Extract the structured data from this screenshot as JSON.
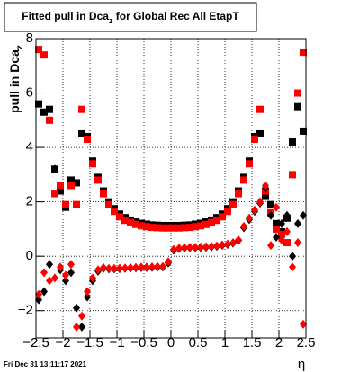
{
  "chart_data": {
    "type": "scatter",
    "title": [
      "Fitted pull in Dca",
      "z",
      " for Global Rec All EtapT"
    ],
    "y_label": [
      "pull in Dca",
      "z"
    ],
    "x_label": "η",
    "footer": "Fri Dec 31 13:11:17 2021",
    "grid": true,
    "xlim": [
      -2.5,
      2.5
    ],
    "ylim": [
      -3,
      8
    ],
    "xticks": [
      {
        "value": -2.5,
        "label": "−2.5"
      },
      {
        "value": -2,
        "label": "−2"
      },
      {
        "value": -1.5,
        "label": "−1.5"
      },
      {
        "value": -1,
        "label": "−1"
      },
      {
        "value": -0.5,
        "label": "−0.5"
      },
      0,
      0.5,
      1,
      1.5,
      2,
      2.5
    ],
    "yticks": [
      {
        "value": -2,
        "label": "−2"
      },
      0,
      2,
      4,
      6,
      8
    ],
    "x": [
      -2.45,
      -2.35,
      -2.25,
      -2.15,
      -2.05,
      -1.95,
      -1.85,
      -1.75,
      -1.65,
      -1.55,
      -1.45,
      -1.35,
      -1.25,
      -1.15,
      -1.05,
      -0.95,
      -0.85,
      -0.75,
      -0.65,
      -0.55,
      -0.45,
      -0.35,
      -0.25,
      -0.15,
      -0.05,
      0.05,
      0.15,
      0.25,
      0.35,
      0.45,
      0.55,
      0.65,
      0.75,
      0.85,
      0.95,
      1.05,
      1.15,
      1.25,
      1.35,
      1.45,
      1.55,
      1.65,
      1.75,
      1.85,
      1.95,
      2.05,
      2.15,
      2.25,
      2.35,
      2.45
    ],
    "series": [
      {
        "color": "#000000",
        "marker": "square",
        "values": [
          5.6,
          5.3,
          5.4,
          3.2,
          2.4,
          1.8,
          2.8,
          2.7,
          4.5,
          4.4,
          3.5,
          2.9,
          2.4,
          2.0,
          1.75,
          1.55,
          1.42,
          1.33,
          1.26,
          1.21,
          1.18,
          1.15,
          1.14,
          1.13,
          1.13,
          1.13,
          1.13,
          1.14,
          1.15,
          1.18,
          1.21,
          1.26,
          1.33,
          1.42,
          1.55,
          1.75,
          2.0,
          2.4,
          2.9,
          3.5,
          4.4,
          4.5,
          2.2,
          1.9,
          1.2,
          0.9,
          1.4,
          4.2,
          5.5,
          4.6
        ]
      },
      {
        "color": "#ff0000",
        "marker": "square",
        "values": [
          7.6,
          7.4,
          5.0,
          2.3,
          2.6,
          1.9,
          2.6,
          1.9,
          5.4,
          4.3,
          3.4,
          2.8,
          2.3,
          1.9,
          1.65,
          1.45,
          1.32,
          1.24,
          1.17,
          1.12,
          1.09,
          1.06,
          1.05,
          1.04,
          1.04,
          1.04,
          1.04,
          1.05,
          1.06,
          1.09,
          1.12,
          1.17,
          1.24,
          1.32,
          1.45,
          1.65,
          1.9,
          2.3,
          2.8,
          3.4,
          4.3,
          5.4,
          2.4,
          1.6,
          1.0,
          0.8,
          0.5,
          3.0,
          6.0,
          7.5
        ]
      },
      {
        "color": "#000000",
        "marker": "diamond",
        "values": [
          -1.6,
          -1.3,
          -0.3,
          3.2,
          -0.5,
          -0.9,
          -0.6,
          -1.9,
          -2.6,
          -1.5,
          -0.9,
          -0.55,
          -0.45,
          -0.47,
          -0.47,
          -0.46,
          -0.45,
          -0.44,
          -0.43,
          -0.42,
          -0.42,
          -0.41,
          -0.4,
          -0.4,
          -0.25,
          0.22,
          0.28,
          0.3,
          0.31,
          0.31,
          0.32,
          0.33,
          0.34,
          0.36,
          0.4,
          0.43,
          0.48,
          0.58,
          1.05,
          1.35,
          1.65,
          1.95,
          2.5,
          1.5,
          0.7,
          1.2,
          1.5,
          0.0,
          1.2,
          1.5
        ]
      },
      {
        "color": "#ff0000",
        "marker": "diamond",
        "values": [
          -1.4,
          -0.6,
          -0.9,
          -0.8,
          -0.4,
          -0.7,
          -0.3,
          -2.6,
          -2.2,
          -1.3,
          -0.8,
          -0.5,
          -0.42,
          -0.45,
          -0.45,
          -0.44,
          -0.43,
          -0.42,
          -0.41,
          -0.4,
          -0.4,
          -0.39,
          -0.38,
          -0.38,
          -0.2,
          0.25,
          0.3,
          0.32,
          0.33,
          0.33,
          0.34,
          0.35,
          0.36,
          0.38,
          0.42,
          0.45,
          0.5,
          0.6,
          1.1,
          1.4,
          1.7,
          2.0,
          2.6,
          0.4,
          1.8,
          0.6,
          0.9,
          -0.4,
          0.5,
          -2.5
        ]
      }
    ]
  }
}
